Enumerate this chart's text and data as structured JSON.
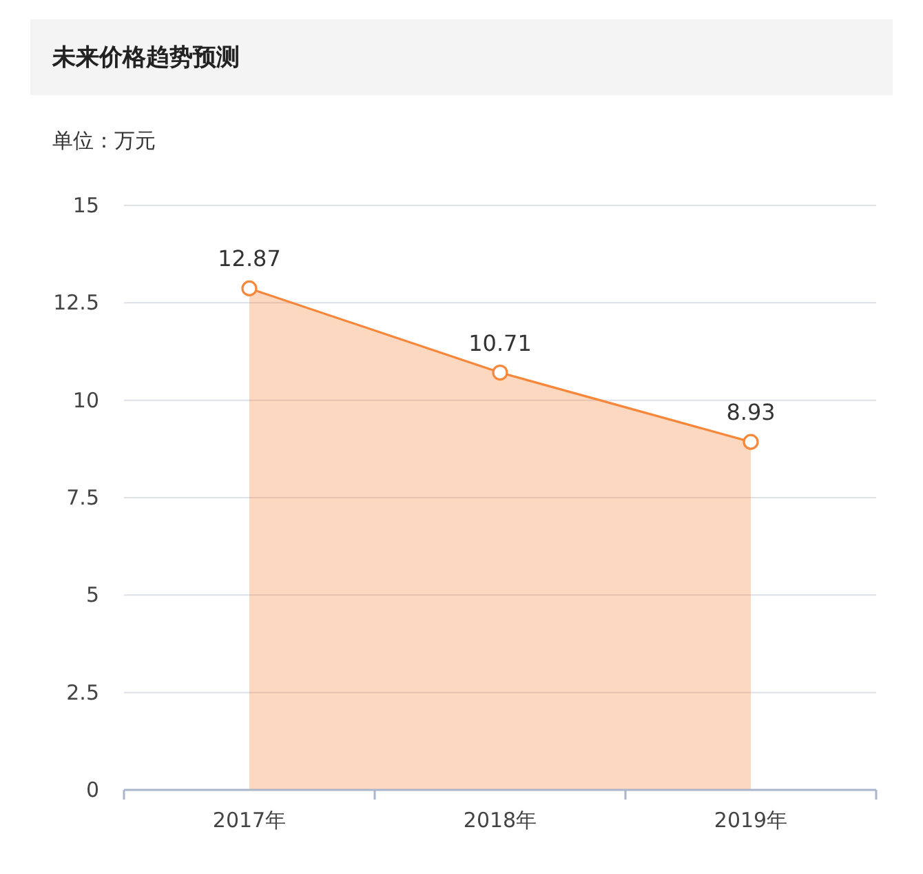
{
  "chart_data": {
    "type": "area",
    "title": "未来价格趋势预测",
    "ylabel": "单位：万元",
    "categories": [
      "2017年",
      "2018年",
      "2019年"
    ],
    "series": [
      {
        "color": "#f7873a",
        "values": [
          12.87,
          10.71,
          8.93
        ]
      }
    ],
    "ylim": [
      0,
      15
    ],
    "yticks": [
      0,
      2.5,
      5,
      7.5,
      10,
      12.5,
      15
    ],
    "grid": "y",
    "marker": "circle",
    "data_labels": true
  }
}
